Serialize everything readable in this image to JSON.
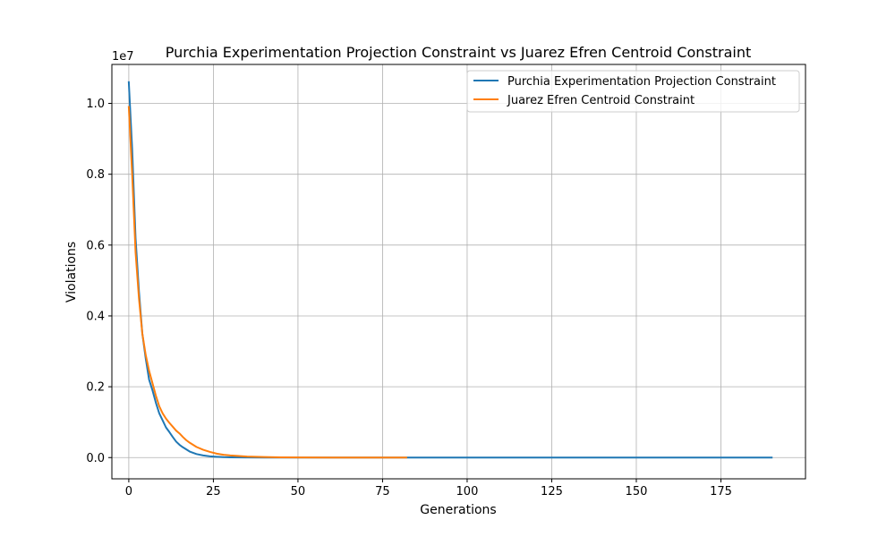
{
  "chart_data": {
    "type": "line",
    "title": "Purchia Experimentation Projection Constraint vs Juarez Efren Centroid Constraint",
    "xlabel": "Generations",
    "ylabel": "Violations",
    "y_offset_label": "1e7",
    "xlim": [
      -5,
      200
    ],
    "ylim": [
      -600000,
      11100000
    ],
    "x_ticks": [
      0,
      25,
      50,
      75,
      100,
      125,
      150,
      175
    ],
    "y_ticks": [
      0,
      2000000,
      4000000,
      6000000,
      8000000,
      10000000
    ],
    "y_tick_labels": [
      "0.0",
      "0.2",
      "0.4",
      "0.6",
      "0.8",
      "1.0"
    ],
    "grid": true,
    "legend_position": "top-right",
    "series": [
      {
        "name": "Purchia Experimentation Projection Constraint",
        "color": "#1f77b4",
        "x": [
          0,
          1,
          2,
          3,
          4,
          5,
          6,
          7,
          8,
          9,
          10,
          11,
          12,
          13,
          14,
          15,
          16,
          17,
          18,
          20,
          22,
          24,
          26,
          28,
          30,
          35,
          40,
          50,
          60,
          80,
          100,
          125,
          150,
          175,
          190
        ],
        "y": [
          10600000,
          8700000,
          6200000,
          4700000,
          3500000,
          2800000,
          2200000,
          1900000,
          1550000,
          1250000,
          1050000,
          850000,
          720000,
          580000,
          450000,
          360000,
          290000,
          230000,
          170000,
          100000,
          60000,
          35000,
          22000,
          12000,
          8000,
          3000,
          1500,
          500,
          200,
          50,
          20,
          10,
          5,
          2,
          0
        ]
      },
      {
        "name": "Juarez Efren Centroid Constraint",
        "color": "#ff7f0e",
        "x": [
          0,
          1,
          2,
          3,
          4,
          5,
          6,
          7,
          8,
          9,
          10,
          11,
          12,
          13,
          14,
          15,
          16,
          17,
          18,
          20,
          22,
          24,
          26,
          28,
          30,
          35,
          40,
          45,
          50,
          60,
          70,
          82
        ],
        "y": [
          9900000,
          8000000,
          5800000,
          4500000,
          3500000,
          2900000,
          2450000,
          2100000,
          1750000,
          1450000,
          1250000,
          1100000,
          980000,
          870000,
          760000,
          680000,
          580000,
          490000,
          420000,
          300000,
          220000,
          160000,
          110000,
          80000,
          60000,
          30000,
          15000,
          8000,
          4000,
          1500,
          500,
          100
        ]
      }
    ]
  }
}
